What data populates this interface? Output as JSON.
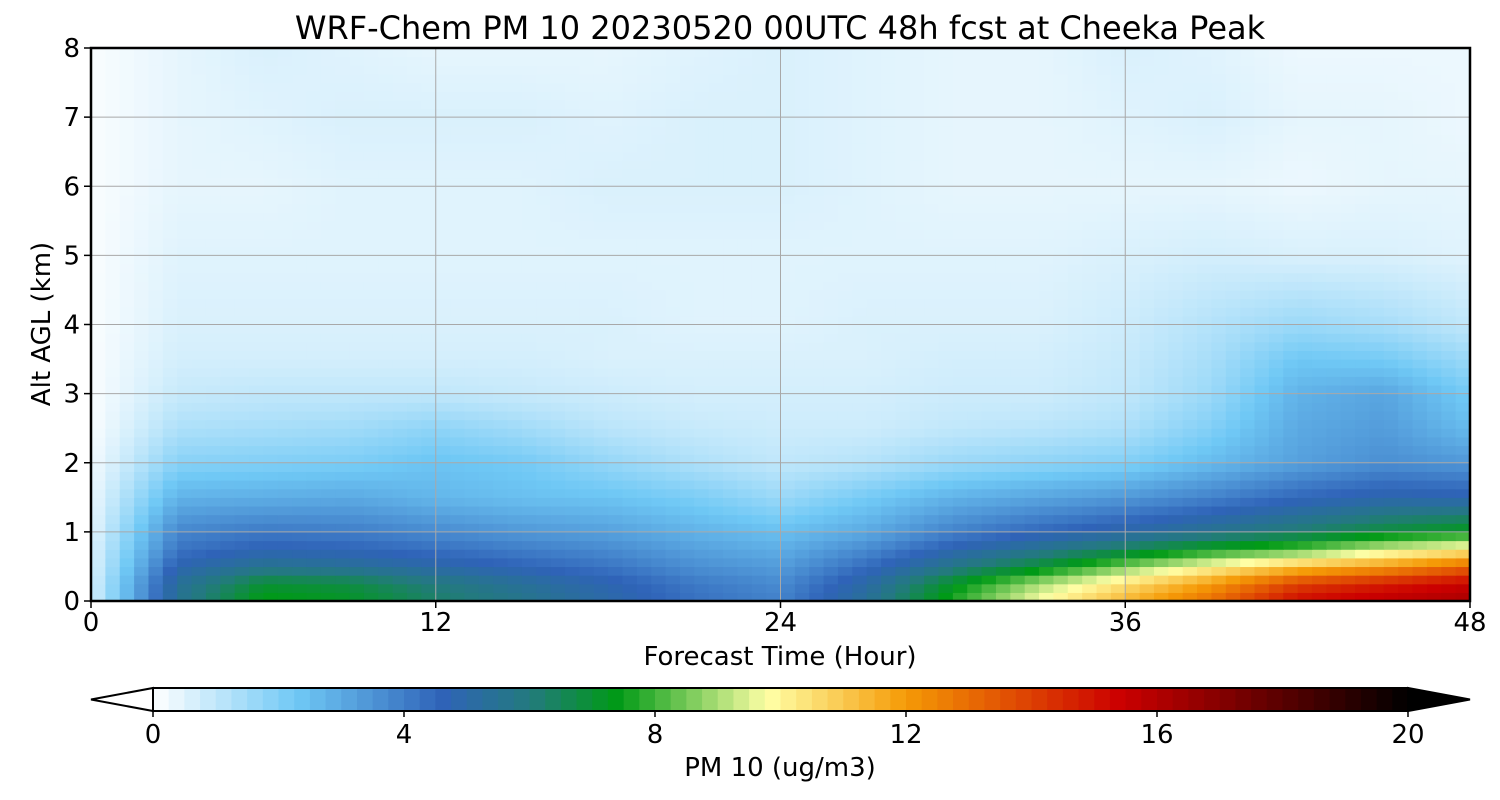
{
  "chart_data": {
    "type": "heatmap",
    "title": "WRF-Chem PM 10  20230520 00UTC 48h fcst at Cheeka Peak",
    "xlabel": "Forecast Time (Hour)",
    "ylabel": "Alt AGL (km)",
    "xlim": [
      0,
      48
    ],
    "ylim": [
      0,
      8
    ],
    "xticks": [
      0,
      12,
      24,
      36,
      48
    ],
    "yticks": [
      0,
      1,
      2,
      3,
      4,
      5,
      6,
      7,
      8
    ],
    "grid": true,
    "colorbar": {
      "label": "PM 10  (ug/m3)",
      "range": [
        0,
        20
      ],
      "ticks": [
        0,
        4,
        8,
        12,
        16,
        20
      ],
      "extend": "both",
      "stops": [
        {
          "v": 0,
          "color": "#ffffff"
        },
        {
          "v": 2.3,
          "color": "#6fc8f5"
        },
        {
          "v": 4.6,
          "color": "#2f63b8"
        },
        {
          "v": 6,
          "color": "#237a7e"
        },
        {
          "v": 7.4,
          "color": "#009a16"
        },
        {
          "v": 9.8,
          "color": "#ffffa6"
        },
        {
          "v": 12,
          "color": "#f59a06"
        },
        {
          "v": 15.4,
          "color": "#cc0000"
        },
        {
          "v": 20,
          "color": "#000000"
        }
      ]
    },
    "grid_x": [
      0,
      3,
      6,
      9,
      12,
      15,
      18,
      21,
      24,
      27,
      30,
      33,
      36,
      39,
      42,
      45,
      48
    ],
    "grid_y": [
      0,
      0.25,
      0.5,
      0.75,
      1,
      1.5,
      2,
      2.5,
      3,
      3.5,
      4,
      5,
      6,
      7,
      8
    ],
    "values": [
      [
        0.6,
        5.5,
        7.5,
        7.2,
        6.3,
        5.7,
        5.0,
        4.3,
        3.9,
        5.4,
        7.7,
        9.8,
        11.4,
        13.0,
        15.2,
        15.8,
        16.2
      ],
      [
        0.6,
        5.4,
        7.0,
        6.8,
        6.0,
        5.4,
        4.8,
        4.1,
        3.7,
        5.1,
        7.2,
        9.0,
        10.5,
        12.0,
        14.0,
        14.8,
        15.5
      ],
      [
        0.5,
        4.8,
        5.6,
        5.4,
        5.0,
        4.6,
        4.2,
        3.6,
        3.3,
        4.4,
        5.8,
        7.0,
        8.6,
        10.0,
        11.2,
        12.0,
        13.2
      ],
      [
        0.5,
        4.2,
        4.7,
        4.6,
        4.3,
        4.0,
        3.7,
        3.2,
        2.9,
        3.7,
        4.8,
        5.6,
        6.5,
        7.5,
        8.2,
        9.4,
        10.2
      ],
      [
        0.4,
        3.8,
        4.1,
        4.0,
        3.7,
        3.4,
        3.2,
        2.8,
        2.5,
        3.0,
        3.9,
        4.5,
        5.0,
        5.6,
        6.2,
        6.9,
        7.4
      ],
      [
        0.3,
        2.8,
        2.9,
        3.0,
        2.7,
        2.5,
        2.4,
        2.1,
        1.6,
        2.2,
        2.8,
        3.1,
        3.4,
        3.9,
        4.5,
        4.9,
        4.8
      ],
      [
        0.2,
        1.9,
        2.0,
        2.1,
        2.4,
        2.2,
        1.7,
        1.3,
        1.0,
        1.2,
        1.6,
        1.8,
        2.0,
        2.6,
        3.2,
        3.6,
        3.4
      ],
      [
        0.1,
        1.3,
        1.4,
        1.5,
        1.8,
        1.5,
        1.1,
        0.9,
        0.8,
        0.8,
        1.0,
        1.1,
        1.3,
        2.0,
        3.0,
        3.3,
        2.6
      ],
      [
        0.1,
        0.9,
        1.0,
        1.0,
        1.0,
        0.9,
        0.8,
        0.7,
        0.7,
        0.7,
        0.8,
        0.8,
        1.0,
        1.6,
        2.8,
        3.1,
        2.2
      ],
      [
        0.1,
        0.7,
        0.7,
        0.7,
        0.7,
        0.7,
        0.6,
        0.6,
        0.6,
        0.6,
        0.7,
        0.7,
        0.9,
        1.4,
        2.3,
        2.2,
        1.6
      ],
      [
        0.1,
        0.6,
        0.6,
        0.6,
        0.6,
        0.6,
        0.6,
        0.5,
        0.5,
        0.6,
        0.6,
        0.6,
        0.8,
        1.2,
        1.6,
        1.4,
        1.0
      ],
      [
        0.1,
        0.5,
        0.5,
        0.5,
        0.5,
        0.5,
        0.5,
        0.5,
        0.5,
        0.5,
        0.5,
        0.5,
        0.6,
        0.7,
        0.6,
        0.6,
        0.5
      ],
      [
        0.1,
        0.4,
        0.4,
        0.5,
        0.5,
        0.5,
        0.6,
        0.6,
        0.6,
        0.5,
        0.4,
        0.4,
        0.4,
        0.4,
        0.3,
        0.4,
        0.4
      ],
      [
        0.1,
        0.4,
        0.5,
        0.6,
        0.6,
        0.6,
        0.5,
        0.6,
        0.6,
        0.5,
        0.4,
        0.4,
        0.5,
        0.6,
        0.4,
        0.4,
        0.3
      ],
      [
        0.1,
        0.4,
        0.6,
        0.5,
        0.4,
        0.4,
        0.4,
        0.5,
        0.6,
        0.5,
        0.4,
        0.4,
        0.6,
        0.5,
        0.3,
        0.3,
        0.3
      ]
    ]
  }
}
